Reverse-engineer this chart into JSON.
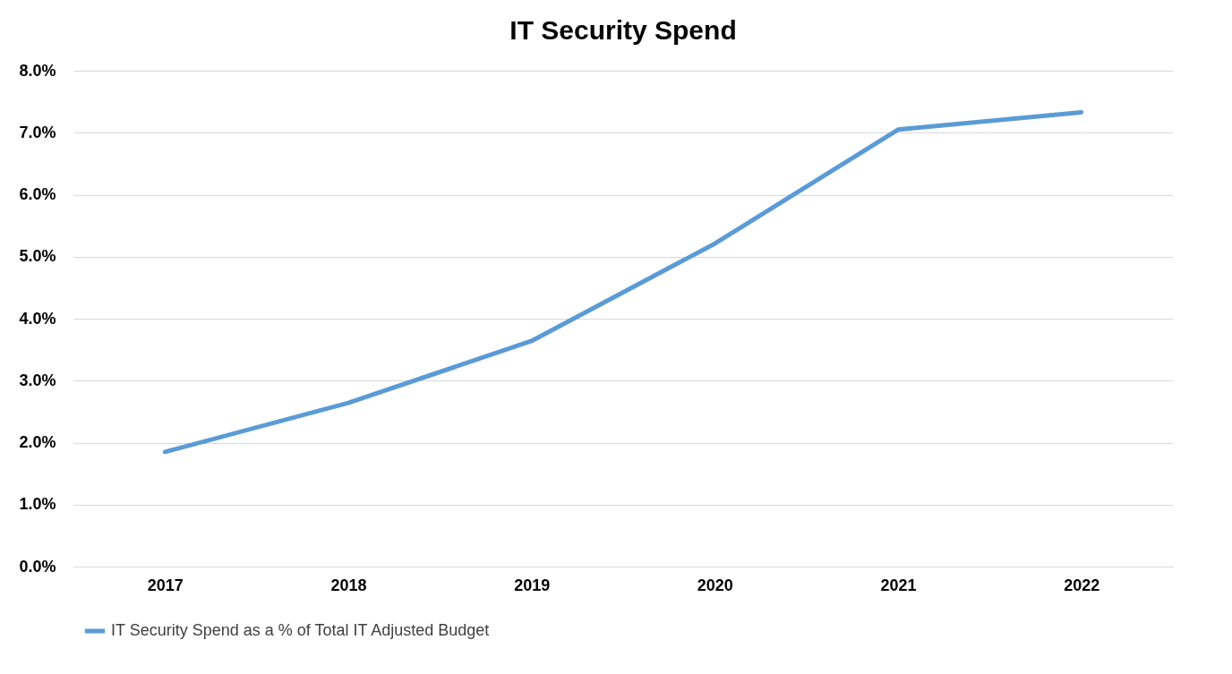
{
  "chart_data": {
    "type": "line",
    "title": "IT Security Spend",
    "categories": [
      "2017",
      "2018",
      "2019",
      "2020",
      "2021",
      "2022"
    ],
    "series": [
      {
        "name": "IT Security Spend as a % of Total IT Adjusted Budget",
        "color": "#5b9bd5",
        "values": [
          1.85,
          2.64,
          3.64,
          5.21,
          7.05,
          7.33
        ]
      }
    ],
    "ylim": [
      0,
      8
    ],
    "yticks": [
      {
        "value": 0,
        "label": "0.0%"
      },
      {
        "value": 1,
        "label": "1.0%"
      },
      {
        "value": 2,
        "label": "2.0%"
      },
      {
        "value": 3,
        "label": "3.0%"
      },
      {
        "value": 4,
        "label": "4.0%"
      },
      {
        "value": 5,
        "label": "5.0%"
      },
      {
        "value": 6,
        "label": "6.0%"
      },
      {
        "value": 7,
        "label": "7.0%"
      },
      {
        "value": 8,
        "label": "8.0%"
      }
    ],
    "grid": "y",
    "legend": "bottom",
    "marker": "none",
    "line_style": "solid"
  }
}
